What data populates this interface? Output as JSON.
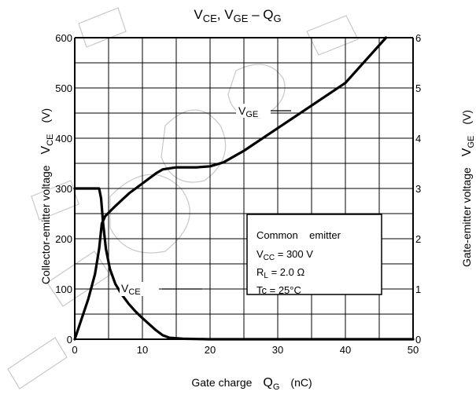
{
  "chart_data": {
    "type": "line",
    "title": {
      "main": "VCE, VGE – QG",
      "p1": "V",
      "s1": "CE",
      "p2": ", V",
      "s2": "GE",
      "p3": " – Q",
      "s3": "G"
    },
    "xlabel": {
      "prefix": "Gate charge",
      "sym": "Q",
      "sub": "G",
      "unit": "(nC)"
    },
    "ylabel_left": {
      "text": "Collector-emitter voltage",
      "sym": "V",
      "sub": "CE",
      "unit": "(V)"
    },
    "ylabel_right": {
      "text": "Gate-emitter voltage",
      "sym": "V",
      "sub": "GE",
      "unit": "(V)"
    },
    "xlim": [
      0,
      50
    ],
    "ylim_left": [
      0,
      600
    ],
    "ylim_right": [
      0,
      6
    ],
    "x_ticks": [
      "0",
      "10",
      "20",
      "30",
      "40",
      "50"
    ],
    "y_left_ticks": [
      "0",
      "100",
      "200",
      "300",
      "400",
      "500",
      "600"
    ],
    "y_right_ticks": [
      "0",
      "1",
      "2",
      "3",
      "4",
      "5",
      "6"
    ],
    "grid": true,
    "series": [
      {
        "name": "VCE",
        "axis": "left",
        "label": {
          "sym": "V",
          "sub": "CE"
        },
        "x": [
          0,
          3.6,
          3.9,
          4.2,
          4.6,
          5.2,
          6,
          7,
          8,
          9,
          10,
          11,
          12,
          13,
          14,
          16,
          20,
          50
        ],
        "y": [
          300,
          300,
          280,
          230,
          180,
          140,
          110,
          88,
          70,
          55,
          42,
          30,
          18,
          8,
          3,
          1,
          0,
          0
        ]
      },
      {
        "name": "VGE",
        "axis": "right",
        "label": {
          "sym": "V",
          "sub": "GE"
        },
        "x": [
          0,
          1,
          2,
          3,
          3.6,
          4,
          4.5,
          6,
          8,
          10,
          12,
          13,
          15,
          18,
          20,
          22,
          25,
          30,
          35,
          40,
          46
        ],
        "y": [
          0,
          0.4,
          0.8,
          1.3,
          1.8,
          2.3,
          2.45,
          2.65,
          2.9,
          3.1,
          3.3,
          3.38,
          3.42,
          3.42,
          3.44,
          3.52,
          3.75,
          4.2,
          4.65,
          5.1,
          6.0
        ]
      }
    ],
    "annotation": {
      "line1": "Common    emitter",
      "line2": {
        "a": "V",
        "b": "CC",
        "c": " = 300 V"
      },
      "line3": {
        "a": "R",
        "b": "L",
        "c": " = 2.0 Ω"
      },
      "line4": "Tc = 25°C"
    }
  }
}
